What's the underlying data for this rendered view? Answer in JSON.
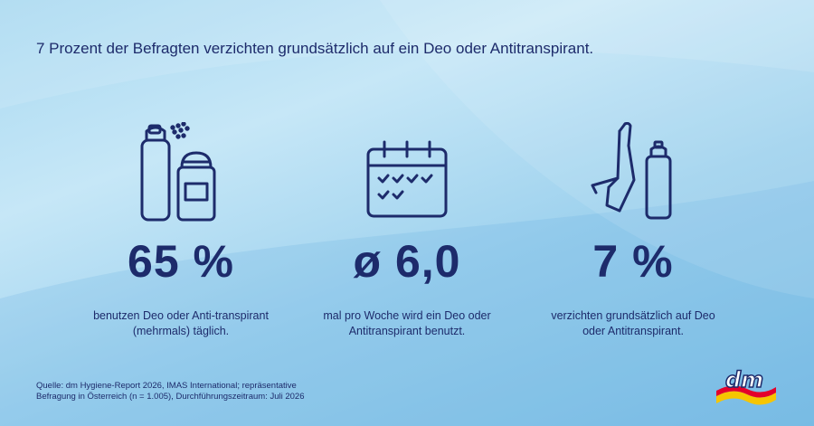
{
  "headline": "7 Prozent der Befragten verzichten grundsätzlich auf ein Deo oder Antitranspirant.",
  "stats": [
    {
      "icon": "deodorant-spray-and-stick-icon",
      "value": "65 %",
      "description": "benutzen Deo oder Anti-transpirant (mehrmals) täglich."
    },
    {
      "icon": "calendar-checkmarks-icon",
      "value": "ø 6,0",
      "description": "mal pro Woche wird ein Deo oder Antitranspirant benutzt."
    },
    {
      "icon": "hand-stop-deodorant-icon",
      "value": "7 %",
      "description": "verzichten grundsätzlich auf Deo oder Antitranspirant."
    }
  ],
  "source": "Quelle: dm Hygiene-Report 2026, IMAS International; repräsentative Befragung in Österreich (n = 1.005), Durchführungszeitraum: Juli 2026",
  "logo": {
    "text": "dm",
    "icon": "dm-logo"
  },
  "colors": {
    "navy": "#1d2b6b",
    "background": "#a9d9f1",
    "logo_yellow": "#f6c500",
    "logo_red": "#e4002b"
  }
}
